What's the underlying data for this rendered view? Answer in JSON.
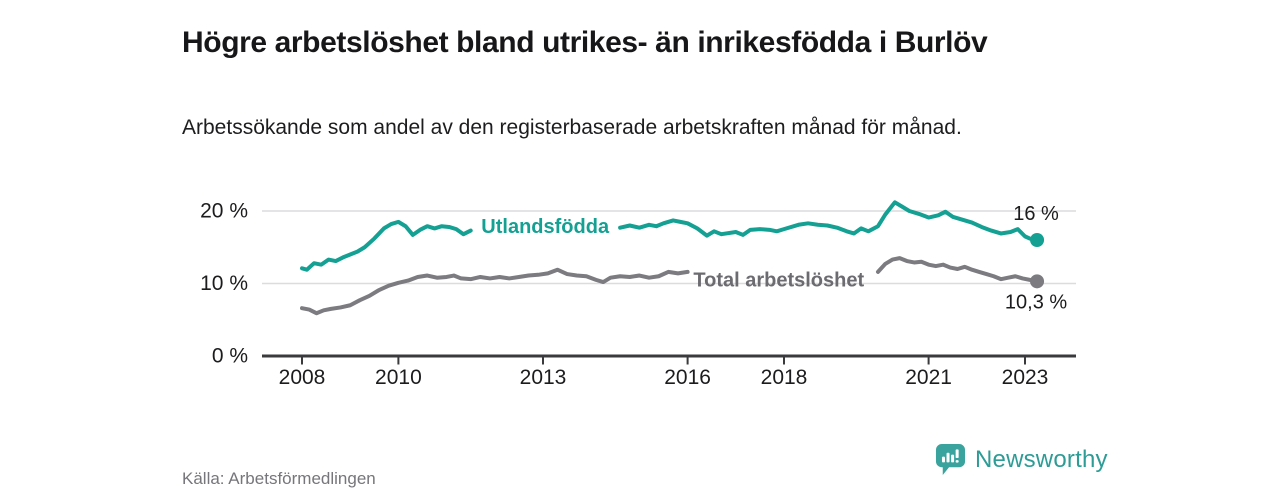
{
  "header": {
    "title": "Högre arbetslöshet bland utrikes- än inrikesfödda i Burlöv",
    "subtitle": "Arbetssökande som andel av den registerbaserade arbetskraften månad för månad."
  },
  "source": {
    "label": "Källa: Arbetsförmedlingen"
  },
  "branding": {
    "name": "Newsworthy",
    "icon": "bar-chart-pin-icon",
    "color": "#2E9C96"
  },
  "colors": {
    "teal": "#14A093",
    "gray_line": "#7b7b80",
    "gray_label": "#6b6b70",
    "text_dark": "#1c1c1e",
    "grid": "#dcdcde",
    "axis": "#3a3a3c",
    "source_gray": "#76767b"
  },
  "chart_data": {
    "type": "line",
    "x_unit": "year_decimal",
    "xlim": [
      2007.17,
      2024.06
    ],
    "ylim": [
      0,
      22
    ],
    "grid": "horizontal",
    "legend_position": "inline",
    "yticks": [
      {
        "value": 0,
        "label": "0 %"
      },
      {
        "value": 10,
        "label": "10 %"
      },
      {
        "value": 20,
        "label": "20 %"
      }
    ],
    "xticks": [
      {
        "value": 2008,
        "label": "2008"
      },
      {
        "value": 2010,
        "label": "2010"
      },
      {
        "value": 2013,
        "label": "2013"
      },
      {
        "value": 2016,
        "label": "2016"
      },
      {
        "value": 2018,
        "label": "2018"
      },
      {
        "value": 2021,
        "label": "2021"
      },
      {
        "value": 2023,
        "label": "2023"
      }
    ],
    "series": [
      {
        "name": "Utlandsfödda",
        "color": "#14A093",
        "inline_label": {
          "x": 2011.72,
          "y": 17.8
        },
        "end_label": "16 %",
        "end_value": 16.0,
        "end_label_side": "above",
        "segments": [
          [
            [
              2008.0,
              12.1
            ],
            [
              2008.1,
              11.9
            ],
            [
              2008.25,
              12.8
            ],
            [
              2008.4,
              12.6
            ],
            [
              2008.55,
              13.3
            ],
            [
              2008.7,
              13.1
            ],
            [
              2008.85,
              13.6
            ],
            [
              2009.0,
              14.0
            ],
            [
              2009.15,
              14.4
            ],
            [
              2009.3,
              15.0
            ],
            [
              2009.5,
              16.2
            ],
            [
              2009.7,
              17.6
            ],
            [
              2009.85,
              18.2
            ],
            [
              2010.0,
              18.5
            ],
            [
              2010.15,
              17.9
            ],
            [
              2010.3,
              16.7
            ],
            [
              2010.45,
              17.4
            ],
            [
              2010.6,
              17.9
            ],
            [
              2010.75,
              17.6
            ],
            [
              2010.9,
              17.9
            ],
            [
              2011.05,
              17.8
            ],
            [
              2011.2,
              17.5
            ],
            [
              2011.35,
              16.8
            ],
            [
              2011.5,
              17.3
            ]
          ],
          [
            [
              2014.6,
              17.7
            ],
            [
              2014.8,
              18.0
            ],
            [
              2015.0,
              17.7
            ],
            [
              2015.2,
              18.1
            ],
            [
              2015.35,
              17.9
            ],
            [
              2015.5,
              18.3
            ],
            [
              2015.7,
              18.7
            ],
            [
              2015.85,
              18.5
            ],
            [
              2016.0,
              18.3
            ],
            [
              2016.2,
              17.6
            ],
            [
              2016.4,
              16.6
            ],
            [
              2016.55,
              17.2
            ],
            [
              2016.7,
              16.8
            ],
            [
              2017.0,
              17.1
            ],
            [
              2017.15,
              16.7
            ],
            [
              2017.3,
              17.4
            ],
            [
              2017.5,
              17.5
            ],
            [
              2017.7,
              17.4
            ],
            [
              2017.85,
              17.2
            ],
            [
              2018.0,
              17.5
            ],
            [
              2018.3,
              18.1
            ],
            [
              2018.5,
              18.3
            ],
            [
              2018.7,
              18.1
            ],
            [
              2018.9,
              18.0
            ],
            [
              2019.1,
              17.7
            ],
            [
              2019.3,
              17.2
            ],
            [
              2019.45,
              16.9
            ],
            [
              2019.6,
              17.6
            ],
            [
              2019.75,
              17.2
            ],
            [
              2019.95,
              17.9
            ],
            [
              2020.1,
              19.5
            ],
            [
              2020.3,
              21.2
            ],
            [
              2020.45,
              20.6
            ],
            [
              2020.6,
              20.0
            ],
            [
              2020.8,
              19.6
            ],
            [
              2021.0,
              19.1
            ],
            [
              2021.2,
              19.4
            ],
            [
              2021.35,
              19.9
            ],
            [
              2021.5,
              19.2
            ],
            [
              2021.7,
              18.8
            ],
            [
              2021.9,
              18.4
            ],
            [
              2022.1,
              17.8
            ],
            [
              2022.3,
              17.3
            ],
            [
              2022.5,
              16.9
            ],
            [
              2022.7,
              17.1
            ],
            [
              2022.85,
              17.5
            ],
            [
              2023.0,
              16.5
            ],
            [
              2023.1,
              16.2
            ],
            [
              2023.25,
              16.0
            ]
          ]
        ]
      },
      {
        "name": "Total arbetslöshet",
        "color": "#7b7b80",
        "label_color": "#6b6b70",
        "inline_label": {
          "x": 2016.12,
          "y": 10.4
        },
        "end_label": "10,3 %",
        "end_value": 10.3,
        "end_label_side": "below",
        "segments": [
          [
            [
              2008.0,
              6.6
            ],
            [
              2008.15,
              6.4
            ],
            [
              2008.3,
              5.9
            ],
            [
              2008.45,
              6.3
            ],
            [
              2008.6,
              6.5
            ],
            [
              2008.8,
              6.7
            ],
            [
              2009.0,
              7.0
            ],
            [
              2009.2,
              7.7
            ],
            [
              2009.4,
              8.3
            ],
            [
              2009.6,
              9.1
            ],
            [
              2009.8,
              9.7
            ],
            [
              2010.0,
              10.1
            ],
            [
              2010.2,
              10.4
            ],
            [
              2010.4,
              10.9
            ],
            [
              2010.6,
              11.1
            ],
            [
              2010.8,
              10.8
            ],
            [
              2011.0,
              10.9
            ],
            [
              2011.15,
              11.1
            ],
            [
              2011.3,
              10.7
            ],
            [
              2011.5,
              10.6
            ],
            [
              2011.7,
              10.9
            ],
            [
              2011.9,
              10.7
            ],
            [
              2012.1,
              10.9
            ],
            [
              2012.3,
              10.7
            ],
            [
              2012.5,
              10.9
            ],
            [
              2012.7,
              11.1
            ],
            [
              2012.9,
              11.2
            ],
            [
              2013.1,
              11.4
            ],
            [
              2013.3,
              11.9
            ],
            [
              2013.5,
              11.3
            ],
            [
              2013.7,
              11.1
            ],
            [
              2013.9,
              11.0
            ],
            [
              2014.1,
              10.5
            ],
            [
              2014.25,
              10.2
            ],
            [
              2014.4,
              10.8
            ],
            [
              2014.6,
              11.0
            ],
            [
              2014.8,
              10.9
            ],
            [
              2015.0,
              11.1
            ],
            [
              2015.2,
              10.8
            ],
            [
              2015.4,
              11.0
            ],
            [
              2015.6,
              11.6
            ],
            [
              2015.8,
              11.4
            ],
            [
              2016.0,
              11.6
            ]
          ],
          [
            [
              2019.95,
              11.6
            ],
            [
              2020.1,
              12.7
            ],
            [
              2020.25,
              13.3
            ],
            [
              2020.4,
              13.5
            ],
            [
              2020.55,
              13.1
            ],
            [
              2020.7,
              12.9
            ],
            [
              2020.85,
              13.0
            ],
            [
              2021.0,
              12.6
            ],
            [
              2021.15,
              12.4
            ],
            [
              2021.3,
              12.6
            ],
            [
              2021.45,
              12.2
            ],
            [
              2021.6,
              12.0
            ],
            [
              2021.75,
              12.3
            ],
            [
              2021.9,
              11.9
            ],
            [
              2022.05,
              11.6
            ],
            [
              2022.2,
              11.3
            ],
            [
              2022.35,
              11.0
            ],
            [
              2022.5,
              10.6
            ],
            [
              2022.65,
              10.8
            ],
            [
              2022.8,
              11.0
            ],
            [
              2022.95,
              10.7
            ],
            [
              2023.1,
              10.5
            ],
            [
              2023.25,
              10.3
            ]
          ]
        ]
      }
    ]
  }
}
